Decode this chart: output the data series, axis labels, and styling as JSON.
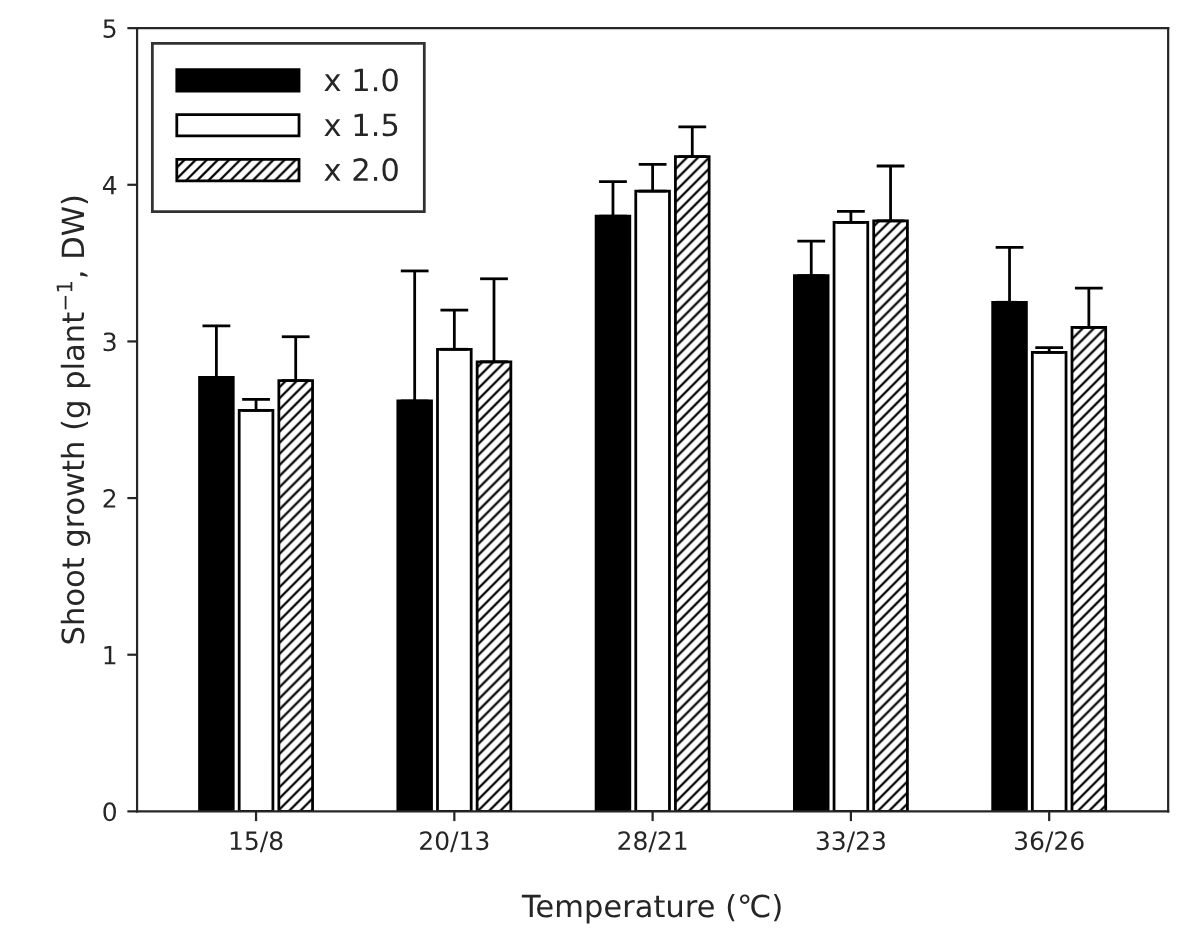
{
  "chart_data": {
    "type": "bar",
    "xlabel": "Temperature (℃)",
    "ylabel": "Shoot growth (g plant$^{−1}$, DW)",
    "categories": [
      "15/8",
      "20/13",
      "28/21",
      "33/23",
      "36/26"
    ],
    "series": [
      {
        "name": "x 1.0",
        "color": "#000000",
        "values": [
          2.77,
          2.62,
          3.8,
          3.42,
          3.25
        ],
        "errors": [
          [
            2.77,
            3.1
          ],
          [
            2.62,
            3.45
          ],
          [
            3.8,
            4.02
          ],
          [
            3.42,
            3.64
          ],
          [
            3.25,
            3.6
          ]
        ]
      },
      {
        "name": "x 1.5",
        "color": "#ffffff",
        "values": [
          2.56,
          2.95,
          3.96,
          3.76,
          2.93
        ],
        "errors": [
          [
            2.56,
            2.63
          ],
          [
            2.95,
            3.2
          ],
          [
            3.96,
            4.13
          ],
          [
            3.76,
            3.83
          ],
          [
            2.93,
            2.96
          ]
        ]
      },
      {
        "name": "x 2.0",
        "color": "#000000",
        "values": [
          2.75,
          2.87,
          4.18,
          3.77,
          3.09
        ],
        "errors": [
          [
            2.75,
            3.03
          ],
          [
            2.87,
            3.4
          ],
          [
            4.18,
            4.37
          ],
          [
            3.77,
            4.12
          ],
          [
            3.09,
            3.34
          ]
        ]
      }
    ],
    "ylim": [
      0,
      5
    ],
    "yticks": [
      0,
      1,
      2,
      3,
      4,
      5
    ],
    "grid": false,
    "legend": "top left"
  }
}
